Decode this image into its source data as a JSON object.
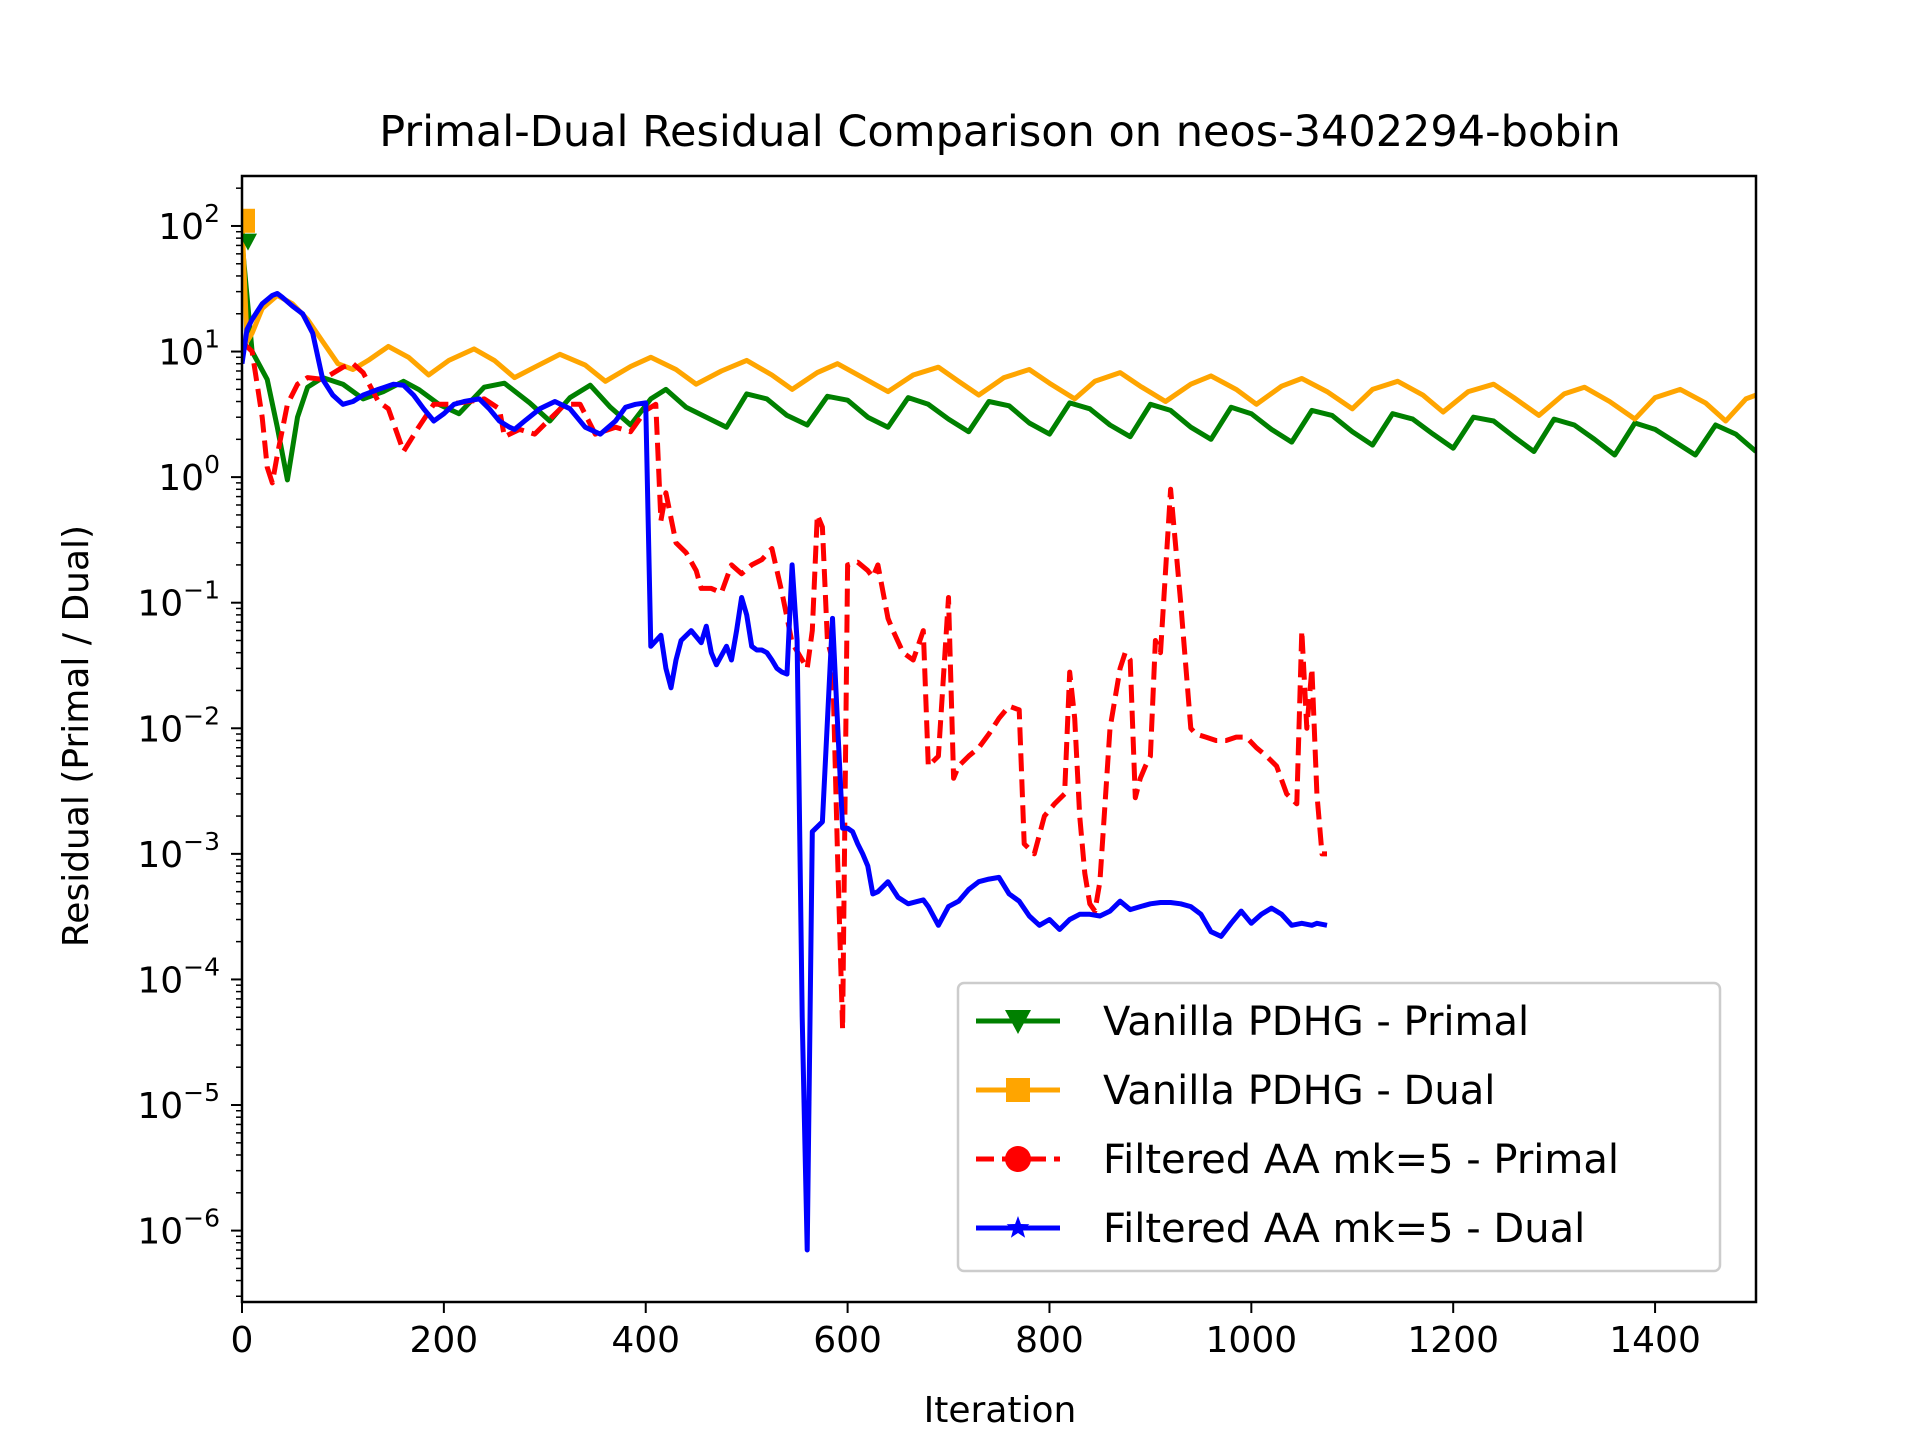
{
  "chart_data": {
    "type": "line",
    "title": "Primal-Dual Residual Comparison on neos-3402294-bobin",
    "xlabel": "Iteration",
    "ylabel": "Residual (Primal / Dual)",
    "xlim": [
      0,
      1500
    ],
    "ylim": [
      2.7e-07,
      250
    ],
    "yscale": "log",
    "grid": false,
    "legend_position": "lower-right",
    "x_ticks": [
      0,
      200,
      400,
      600,
      800,
      1000,
      1200,
      1400
    ],
    "y_ticks": [
      {
        "value": 1e-06,
        "base": "10",
        "exp": "−6"
      },
      {
        "value": 1e-05,
        "base": "10",
        "exp": "−5"
      },
      {
        "value": 0.0001,
        "base": "10",
        "exp": "−4"
      },
      {
        "value": 0.001,
        "base": "10",
        "exp": "−3"
      },
      {
        "value": 0.01,
        "base": "10",
        "exp": "−2"
      },
      {
        "value": 0.1,
        "base": "10",
        "exp": "−1"
      },
      {
        "value": 1,
        "base": "10",
        "exp": "0"
      },
      {
        "value": 10,
        "base": "10",
        "exp": "1"
      },
      {
        "value": 100,
        "base": "10",
        "exp": "2"
      }
    ],
    "series": [
      {
        "name": "Vanilla PDHG - Primal",
        "color": "#008000",
        "dash": "solid",
        "marker": "triangle-down",
        "x": [
          0,
          10,
          25,
          35,
          45,
          55,
          65,
          80,
          100,
          120,
          140,
          160,
          175,
          195,
          215,
          240,
          260,
          285,
          305,
          325,
          345,
          365,
          385,
          405,
          420,
          440,
          460,
          480,
          500,
          520,
          540,
          560,
          580,
          600,
          620,
          640,
          660,
          680,
          700,
          720,
          740,
          760,
          780,
          800,
          820,
          840,
          860,
          880,
          900,
          920,
          940,
          960,
          980,
          1000,
          1020,
          1040,
          1060,
          1080,
          1100,
          1120,
          1140,
          1160,
          1180,
          1200,
          1220,
          1240,
          1260,
          1280,
          1300,
          1320,
          1340,
          1360,
          1380,
          1400,
          1420,
          1440,
          1460,
          1480,
          1500
        ],
        "y": [
          75,
          10,
          6,
          2.5,
          0.95,
          3,
          5.2,
          6.2,
          5.5,
          4.2,
          4.8,
          5.8,
          5.0,
          3.8,
          3.2,
          5.2,
          5.6,
          3.9,
          2.8,
          4.3,
          5.4,
          3.6,
          2.6,
          4.2,
          5.0,
          3.6,
          3.0,
          2.5,
          4.6,
          4.2,
          3.1,
          2.6,
          4.4,
          4.1,
          3.0,
          2.5,
          4.3,
          3.8,
          2.9,
          2.3,
          4.0,
          3.7,
          2.7,
          2.2,
          3.9,
          3.5,
          2.6,
          2.1,
          3.8,
          3.4,
          2.5,
          2.0,
          3.6,
          3.2,
          2.4,
          1.9,
          3.4,
          3.1,
          2.3,
          1.8,
          3.2,
          2.9,
          2.2,
          1.7,
          3.0,
          2.8,
          2.1,
          1.6,
          2.9,
          2.6,
          2.0,
          1.5,
          2.7,
          2.4,
          1.9,
          1.5,
          2.6,
          2.2,
          1.6
        ]
      },
      {
        "name": "Vanilla PDHG - Dual",
        "color": "#ffa500",
        "dash": "solid",
        "marker": "square",
        "x": [
          0,
          5,
          10,
          20,
          35,
          50,
          65,
          80,
          95,
          110,
          125,
          145,
          165,
          185,
          205,
          230,
          250,
          270,
          290,
          315,
          340,
          360,
          385,
          405,
          430,
          450,
          475,
          500,
          525,
          545,
          570,
          590,
          615,
          640,
          665,
          690,
          710,
          730,
          755,
          780,
          800,
          825,
          845,
          870,
          890,
          915,
          940,
          960,
          985,
          1005,
          1030,
          1050,
          1075,
          1100,
          1120,
          1145,
          1170,
          1190,
          1215,
          1240,
          1260,
          1285,
          1310,
          1330,
          1355,
          1380,
          1400,
          1425,
          1450,
          1470,
          1490,
          1500
        ],
        "y": [
          110,
          12,
          14,
          22,
          28,
          24,
          18,
          12,
          8,
          7.2,
          8.5,
          11,
          9,
          6.5,
          8.5,
          10.5,
          8.5,
          6.2,
          7.5,
          9.5,
          7.8,
          5.8,
          7.6,
          9.0,
          7.2,
          5.5,
          7.0,
          8.5,
          6.5,
          5.0,
          6.8,
          8.0,
          6.2,
          4.8,
          6.5,
          7.5,
          5.8,
          4.5,
          6.2,
          7.2,
          5.6,
          4.2,
          5.8,
          6.8,
          5.3,
          4.0,
          5.5,
          6.4,
          5.0,
          3.8,
          5.3,
          6.1,
          4.8,
          3.5,
          5.0,
          5.8,
          4.5,
          3.3,
          4.8,
          5.5,
          4.3,
          3.1,
          4.6,
          5.2,
          4.0,
          2.9,
          4.3,
          5.0,
          3.9,
          2.8,
          4.2,
          4.5
        ]
      },
      {
        "name": "Filtered AA mk=5 - Primal",
        "color": "#ff0000",
        "dash": "dashed",
        "marker": "circle",
        "x": [
          0,
          10,
          20,
          25,
          30,
          35,
          45,
          55,
          65,
          80,
          100,
          110,
          120,
          135,
          145,
          160,
          175,
          190,
          205,
          225,
          240,
          255,
          260,
          275,
          290,
          305,
          320,
          335,
          350,
          370,
          385,
          400,
          410,
          415,
          420,
          430,
          440,
          450,
          455,
          465,
          475,
          485,
          495,
          505,
          515,
          525,
          535,
          545,
          555,
          560,
          565,
          570,
          575,
          580,
          585,
          590,
          595,
          600,
          610,
          620,
          625,
          630,
          640,
          645,
          655,
          665,
          675,
          680,
          690,
          700,
          705,
          710,
          720,
          730,
          740,
          750,
          760,
          770,
          775,
          785,
          795,
          805,
          815,
          820,
          825,
          830,
          835,
          840,
          845,
          850,
          860,
          870,
          875,
          880,
          885,
          890,
          895,
          900,
          905,
          910,
          920,
          930,
          940,
          945,
          955,
          965,
          975,
          985,
          995,
          1005,
          1015,
          1025,
          1035,
          1045,
          1050,
          1055,
          1060,
          1065,
          1070,
          1075
        ],
        "y": [
          12,
          10,
          3,
          1.2,
          0.9,
          1.5,
          3.8,
          5.5,
          6.2,
          6.0,
          7.5,
          8.0,
          6.8,
          4.0,
          3.5,
          1.6,
          2.5,
          3.8,
          3.8,
          4.0,
          4.2,
          3.5,
          2.1,
          2.4,
          2.2,
          2.9,
          3.8,
          3.8,
          2.2,
          2.5,
          2.3,
          3.4,
          3.8,
          0.45,
          0.75,
          0.3,
          0.25,
          0.18,
          0.13,
          0.13,
          0.12,
          0.2,
          0.17,
          0.2,
          0.22,
          0.27,
          0.12,
          0.048,
          0.035,
          0.03,
          0.06,
          0.5,
          0.4,
          0.05,
          0.035,
          0.001,
          4e-05,
          0.2,
          0.21,
          0.18,
          0.16,
          0.2,
          0.075,
          0.06,
          0.04,
          0.035,
          0.06,
          0.005,
          0.006,
          0.11,
          0.004,
          0.005,
          0.006,
          0.007,
          0.009,
          0.012,
          0.015,
          0.014,
          0.0012,
          0.001,
          0.002,
          0.0025,
          0.003,
          0.028,
          0.012,
          0.002,
          0.0007,
          0.0004,
          0.00035,
          0.0006,
          0.01,
          0.03,
          0.04,
          0.035,
          0.0028,
          0.004,
          0.005,
          0.006,
          0.05,
          0.04,
          0.8,
          0.1,
          0.01,
          0.009,
          0.0085,
          0.008,
          0.008,
          0.0085,
          0.0085,
          0.007,
          0.006,
          0.005,
          0.003,
          0.0025,
          0.06,
          0.01,
          0.03,
          0.003,
          0.001,
          0.001
        ]
      },
      {
        "name": "Filtered AA mk=5 - Dual",
        "color": "#0000ff",
        "dash": "solid",
        "marker": "star",
        "x": [
          0,
          5,
          10,
          20,
          30,
          35,
          40,
          50,
          60,
          70,
          80,
          90,
          100,
          110,
          120,
          135,
          150,
          160,
          170,
          180,
          190,
          200,
          210,
          220,
          235,
          245,
          255,
          265,
          270,
          280,
          295,
          310,
          325,
          340,
          355,
          370,
          380,
          390,
          400,
          405,
          415,
          420,
          425,
          430,
          435,
          445,
          455,
          460,
          465,
          470,
          480,
          485,
          490,
          495,
          500,
          505,
          510,
          515,
          520,
          525,
          530,
          535,
          540,
          545,
          550,
          555,
          560,
          565,
          575,
          585,
          595,
          600,
          605,
          610,
          615,
          620,
          625,
          630,
          640,
          650,
          660,
          670,
          675,
          680,
          690,
          700,
          710,
          720,
          730,
          740,
          750,
          760,
          770,
          780,
          790,
          800,
          810,
          820,
          830,
          840,
          850,
          860,
          870,
          880,
          890,
          900,
          910,
          920,
          930,
          940,
          950,
          960,
          970,
          980,
          990,
          1000,
          1010,
          1020,
          1030,
          1040,
          1050,
          1060,
          1065,
          1075
        ],
        "y": [
          8,
          15,
          18,
          24,
          28,
          29,
          27,
          23,
          20,
          14,
          6,
          4.5,
          3.8,
          4.0,
          4.5,
          5.0,
          5.5,
          5.4,
          4.5,
          3.5,
          2.8,
          3.2,
          3.8,
          4.0,
          4.2,
          3.5,
          2.8,
          2.5,
          2.4,
          2.8,
          3.5,
          4.0,
          3.5,
          2.5,
          2.2,
          2.8,
          3.6,
          3.8,
          3.9,
          0.045,
          0.055,
          0.03,
          0.021,
          0.035,
          0.05,
          0.06,
          0.048,
          0.065,
          0.04,
          0.032,
          0.045,
          0.035,
          0.06,
          0.11,
          0.08,
          0.045,
          0.042,
          0.042,
          0.04,
          0.035,
          0.03,
          0.028,
          0.027,
          0.2,
          0.05,
          5e-05,
          7e-07,
          0.0015,
          0.0018,
          0.075,
          0.0016,
          0.0016,
          0.0015,
          0.0012,
          0.001,
          0.0008,
          0.00048,
          0.0005,
          0.0006,
          0.00045,
          0.0004,
          0.00042,
          0.00043,
          0.00038,
          0.00027,
          0.00038,
          0.00042,
          0.00052,
          0.0006,
          0.00063,
          0.00065,
          0.00048,
          0.00042,
          0.00032,
          0.00027,
          0.0003,
          0.00025,
          0.0003,
          0.00033,
          0.00033,
          0.00032,
          0.00035,
          0.00042,
          0.00036,
          0.00038,
          0.0004,
          0.00041,
          0.00041,
          0.0004,
          0.00038,
          0.00033,
          0.00024,
          0.00022,
          0.00028,
          0.00035,
          0.00028,
          0.00033,
          0.00037,
          0.00033,
          0.00027,
          0.00028,
          0.00027,
          0.00028,
          0.00027
        ]
      }
    ]
  }
}
